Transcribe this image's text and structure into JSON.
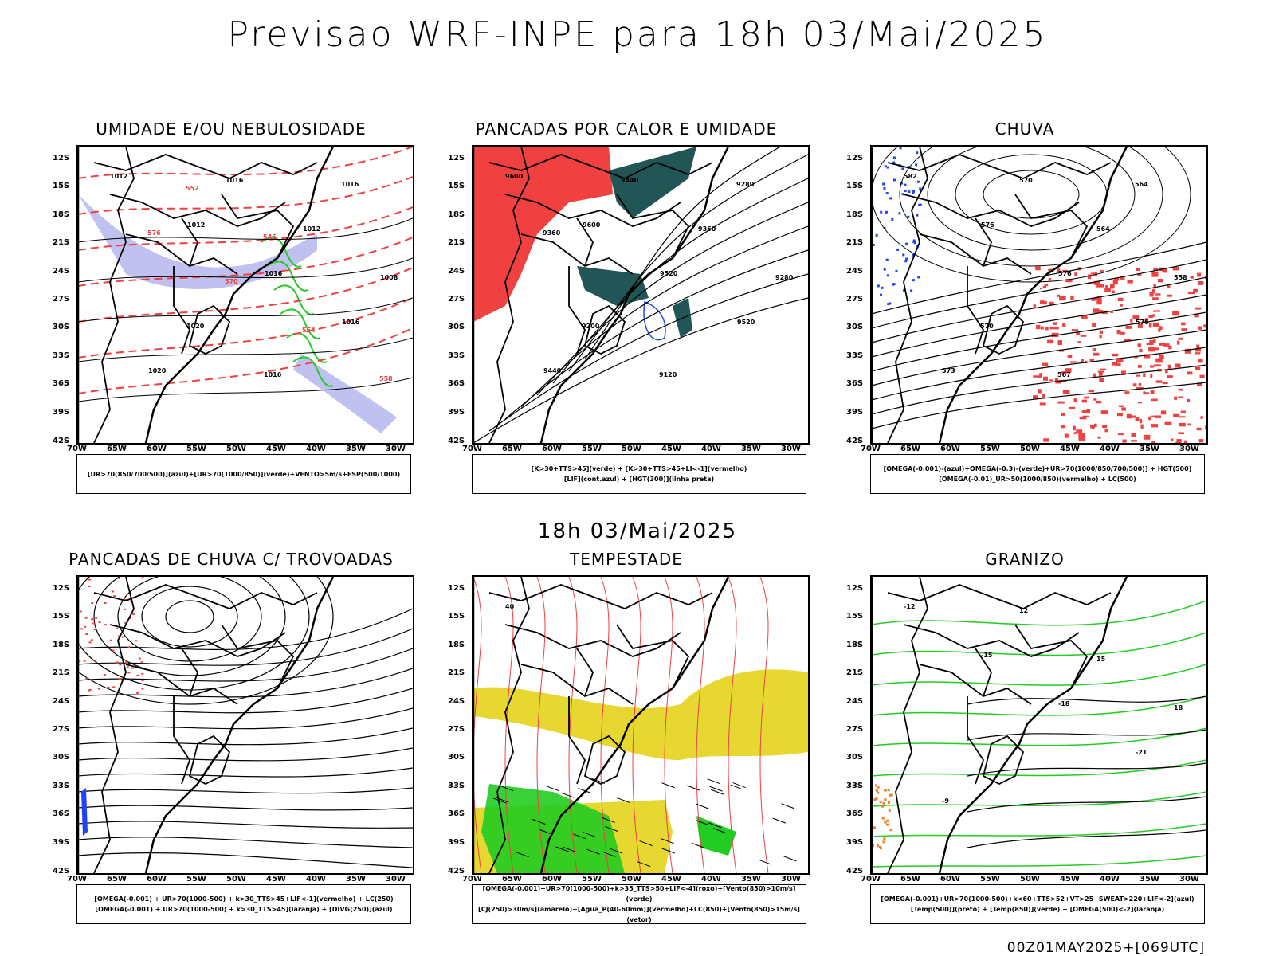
{
  "title": "Previsao WRF-INPE  para 18h 03/Mai/2025",
  "mid_date": "18h 03/Mai/2025",
  "run_stamp": "00Z01MAY2025+[069UTC]",
  "lat_labels": [
    "12S",
    "15S",
    "18S",
    "21S",
    "24S",
    "27S",
    "30S",
    "33S",
    "36S",
    "39S",
    "42S"
  ],
  "lon_labels": [
    "70W",
    "65W",
    "60W",
    "55W",
    "50W",
    "45W",
    "40W",
    "35W",
    "30W"
  ],
  "colors": {
    "red": "#f04040",
    "green": "#22cc22",
    "blue": "#2244ee",
    "lavender": "#b0b0ee",
    "teal": "#225555",
    "yellow": "#e6d830",
    "orange": "#f08020"
  },
  "panels": [
    {
      "title": "UMIDADE E/OU NEBULOSIDADE",
      "legend": [
        "[UR>70(850/700/500)](azul)+[UR>70(1000/850)](verde)+VENTO>5m/s+ESP(500/1000)"
      ],
      "labels": [
        "1012",
        "1012",
        "1016",
        "1016",
        "1020",
        "1016",
        "1012",
        "1008",
        "1020",
        "1016",
        "1016",
        "576",
        "570",
        "564",
        "558",
        "552",
        "546"
      ]
    },
    {
      "title": "PANCADAS POR CALOR E UMIDADE",
      "legend": [
        "[K>30+TTS>45](verde) + [K>30+TTS>45+LI<-1](vermelho)",
        "[LIF](cont.azul) + [HGT(300)](linha preta)"
      ],
      "labels": [
        "9600",
        "9600",
        "9520",
        "9520",
        "9440",
        "9440",
        "9360",
        "9280",
        "9200",
        "9120",
        "9280",
        "9360"
      ]
    },
    {
      "title": "CHUVA",
      "legend": [
        "[OMEGA(-0.001)-(azul)+OMEGA(-0.3)-(verde)+UR>70(1000/850/700/500)] + HGT(500)",
        "[OMEGA(-0.01)_UR>50(1000/850)(vermelho) + LC(500)"
      ],
      "labels": [
        "582",
        "576",
        "576",
        "576",
        "573",
        "570",
        "564",
        "558",
        "570",
        "567",
        "564"
      ]
    },
    {
      "title": "PANCADAS DE CHUVA C/ TROVOADAS",
      "legend": [
        "[OMEGA(-0.001) + UR>70(1000-500) + k>30_TTS>45+LIF<-1](vermelho) + LC(250)",
        "[OMEGA(-0.001) + UR>70(1000-500) + k>30_TTS>45](laranja) + [DIVG(250)](azul)"
      ],
      "labels": []
    },
    {
      "title": "TEMPESTADE",
      "legend": [
        "[OMEGA(-0.001)+UR>70(1000-500)+k>35_TTS>50+LIF<-4](roxo)+[Vento(850)>10m/s](verde)",
        "[CJ(250)>30m/s](amarelo)+[Agua_P(40-60mm)](vermelho)+LC(850)+[Vento(850)>15m/s](vetor)"
      ],
      "labels": [
        "40"
      ]
    },
    {
      "title": "GRANIZO",
      "legend": [
        "[OMEGA(-0.001)+UR>70(1000-500)+k<60+TTS>52+VT>25+SWEAT>220+LIF<-2](azul)",
        "[Temp(500)](preto) + [Temp(850)](verde) + [OMEGA(500)<-2](laranja)"
      ],
      "labels": [
        "-12",
        "-15",
        "-18",
        "-21",
        "-9",
        "12",
        "15",
        "18"
      ]
    }
  ]
}
